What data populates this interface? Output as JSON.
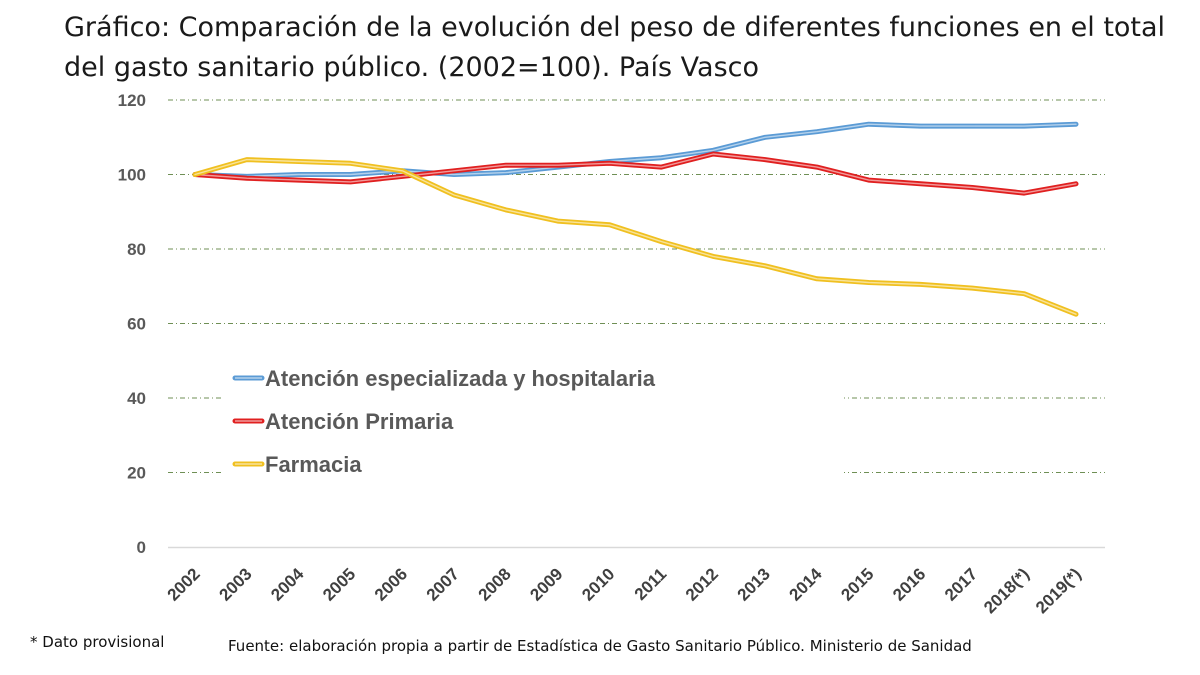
{
  "chart_data": {
    "type": "line",
    "title": "Gráfico: Comparación de la evolución del peso de diferentes funciones en el total del gasto sanitario público. (2002=100). País Vasco",
    "categories": [
      "2002",
      "2003",
      "2004",
      "2005",
      "2006",
      "2007",
      "2008",
      "2009",
      "2010",
      "2011",
      "2012",
      "2013",
      "2014",
      "2015",
      "2016",
      "2017",
      "2018(*)",
      "2019(*)"
    ],
    "series": [
      {
        "name": "Atención especializada y hospitalaria",
        "color": "#5b9bd5",
        "values": [
          100,
          99.5,
          100,
          100,
          101,
          100,
          100.5,
          102,
          103.5,
          104.5,
          106.5,
          110,
          111.5,
          113.5,
          113,
          113,
          113,
          113.5
        ]
      },
      {
        "name": "Atención Primaria",
        "color": "#e02020",
        "values": [
          100,
          99,
          98.5,
          98,
          99.5,
          101,
          102.5,
          102.5,
          103,
          102,
          105.5,
          104,
          102,
          98.5,
          97.5,
          96.5,
          95,
          97.5
        ]
      },
      {
        "name": "Farmacia",
        "color": "#f0c020",
        "values": [
          100,
          104,
          103.5,
          103,
          101,
          94.5,
          90.5,
          87.5,
          86.5,
          82,
          78,
          75.5,
          72,
          71,
          70.5,
          69.5,
          68,
          62.5
        ]
      }
    ],
    "y_ticks": [
      "0",
      "20",
      "40",
      "60",
      "80",
      "100",
      "120"
    ],
    "ylim": [
      0,
      120
    ],
    "grid": true,
    "legend_position": "center-left, inside plot area"
  },
  "footnote": "* Dato provisional",
  "source": "Fuente: elaboración propia a partir de Estadística de Gasto Sanitario Público. Ministerio de Sanidad"
}
